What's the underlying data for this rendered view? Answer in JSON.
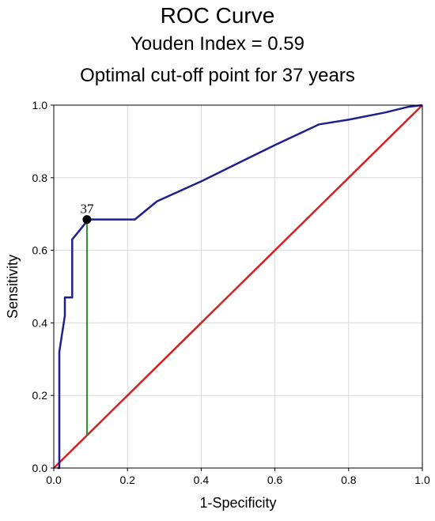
{
  "chart_data": {
    "type": "line",
    "title": "ROC Curve",
    "subtitle": "Youden Index = 0.59",
    "subtitle2": "Optimal cut-off point for 37 years",
    "xlabel": "1-Specificity",
    "ylabel": "Sensitivity",
    "xlim": [
      0,
      1
    ],
    "ylim": [
      0,
      1
    ],
    "xticks": [
      "0.0",
      "0.2",
      "0.4",
      "0.6",
      "0.8",
      "1.0"
    ],
    "yticks": [
      "0.0",
      "0.2",
      "0.4",
      "0.6",
      "0.8",
      "1.0"
    ],
    "grid": true,
    "series": [
      {
        "color": "#1f1f8f",
        "x": [
          0.01,
          0.015,
          0.015,
          0.03,
          0.03,
          0.05,
          0.05,
          0.09,
          0.09,
          0.22,
          0.28,
          0.4,
          0.5,
          0.6,
          0.72,
          0.8,
          0.9,
          0.96,
          1.0
        ],
        "y": [
          0.0,
          0.0,
          0.32,
          0.42,
          0.47,
          0.47,
          0.63,
          0.68,
          0.685,
          0.685,
          0.735,
          0.79,
          0.84,
          0.89,
          0.947,
          0.96,
          0.98,
          0.995,
          1.0
        ]
      },
      {
        "color": "#d62020",
        "x": [
          0.0,
          1.0
        ],
        "y": [
          0.0,
          1.0
        ]
      }
    ],
    "annotations": [
      {
        "label": "37",
        "x": 0.09,
        "y": 0.685,
        "color": "#000000"
      }
    ],
    "youden_line": {
      "x": 0.09,
      "y_from": 0.09,
      "y_to": 0.685,
      "color": "#2e8b2e"
    }
  }
}
